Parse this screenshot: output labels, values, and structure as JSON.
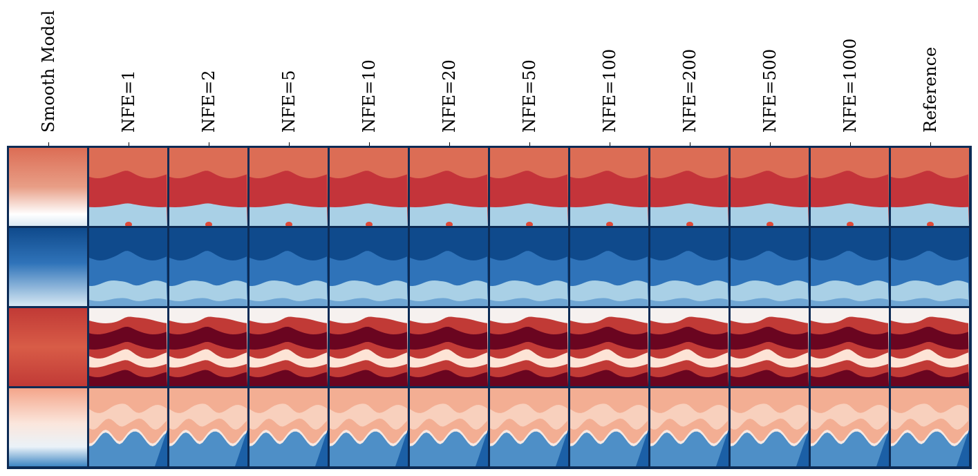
{
  "columns": [
    "Smooth Model",
    "NFE=1",
    "NFE=2",
    "NFE=5",
    "NFE=10",
    "NFE=20",
    "NFE=50",
    "NFE=100",
    "NFE=200",
    "NFE=500",
    "NFE=1000",
    "Reference"
  ],
  "rows": [
    {
      "palette": [
        "#dc6d55",
        "#c4343a",
        "#f4e8e2",
        "#a9d0e6",
        "#e04a37"
      ]
    },
    {
      "palette": [
        "#0f4a8c",
        "#2f73b9",
        "#a9d0e6",
        "#6fa6d4",
        "#5d9bd0"
      ]
    },
    {
      "palette": [
        "#f6f1ef",
        "#c13a36",
        "#6a0520",
        "#fde4d6",
        "#b22c31"
      ]
    },
    {
      "palette": [
        "#f3ae93",
        "#f8d0bd",
        "#f7e9e3",
        "#4e8fc7",
        "#1b5fa6"
      ]
    }
  ],
  "colors": {
    "frame": "#0c2b55",
    "smooth_gradient_mid": "#ffffff"
  }
}
